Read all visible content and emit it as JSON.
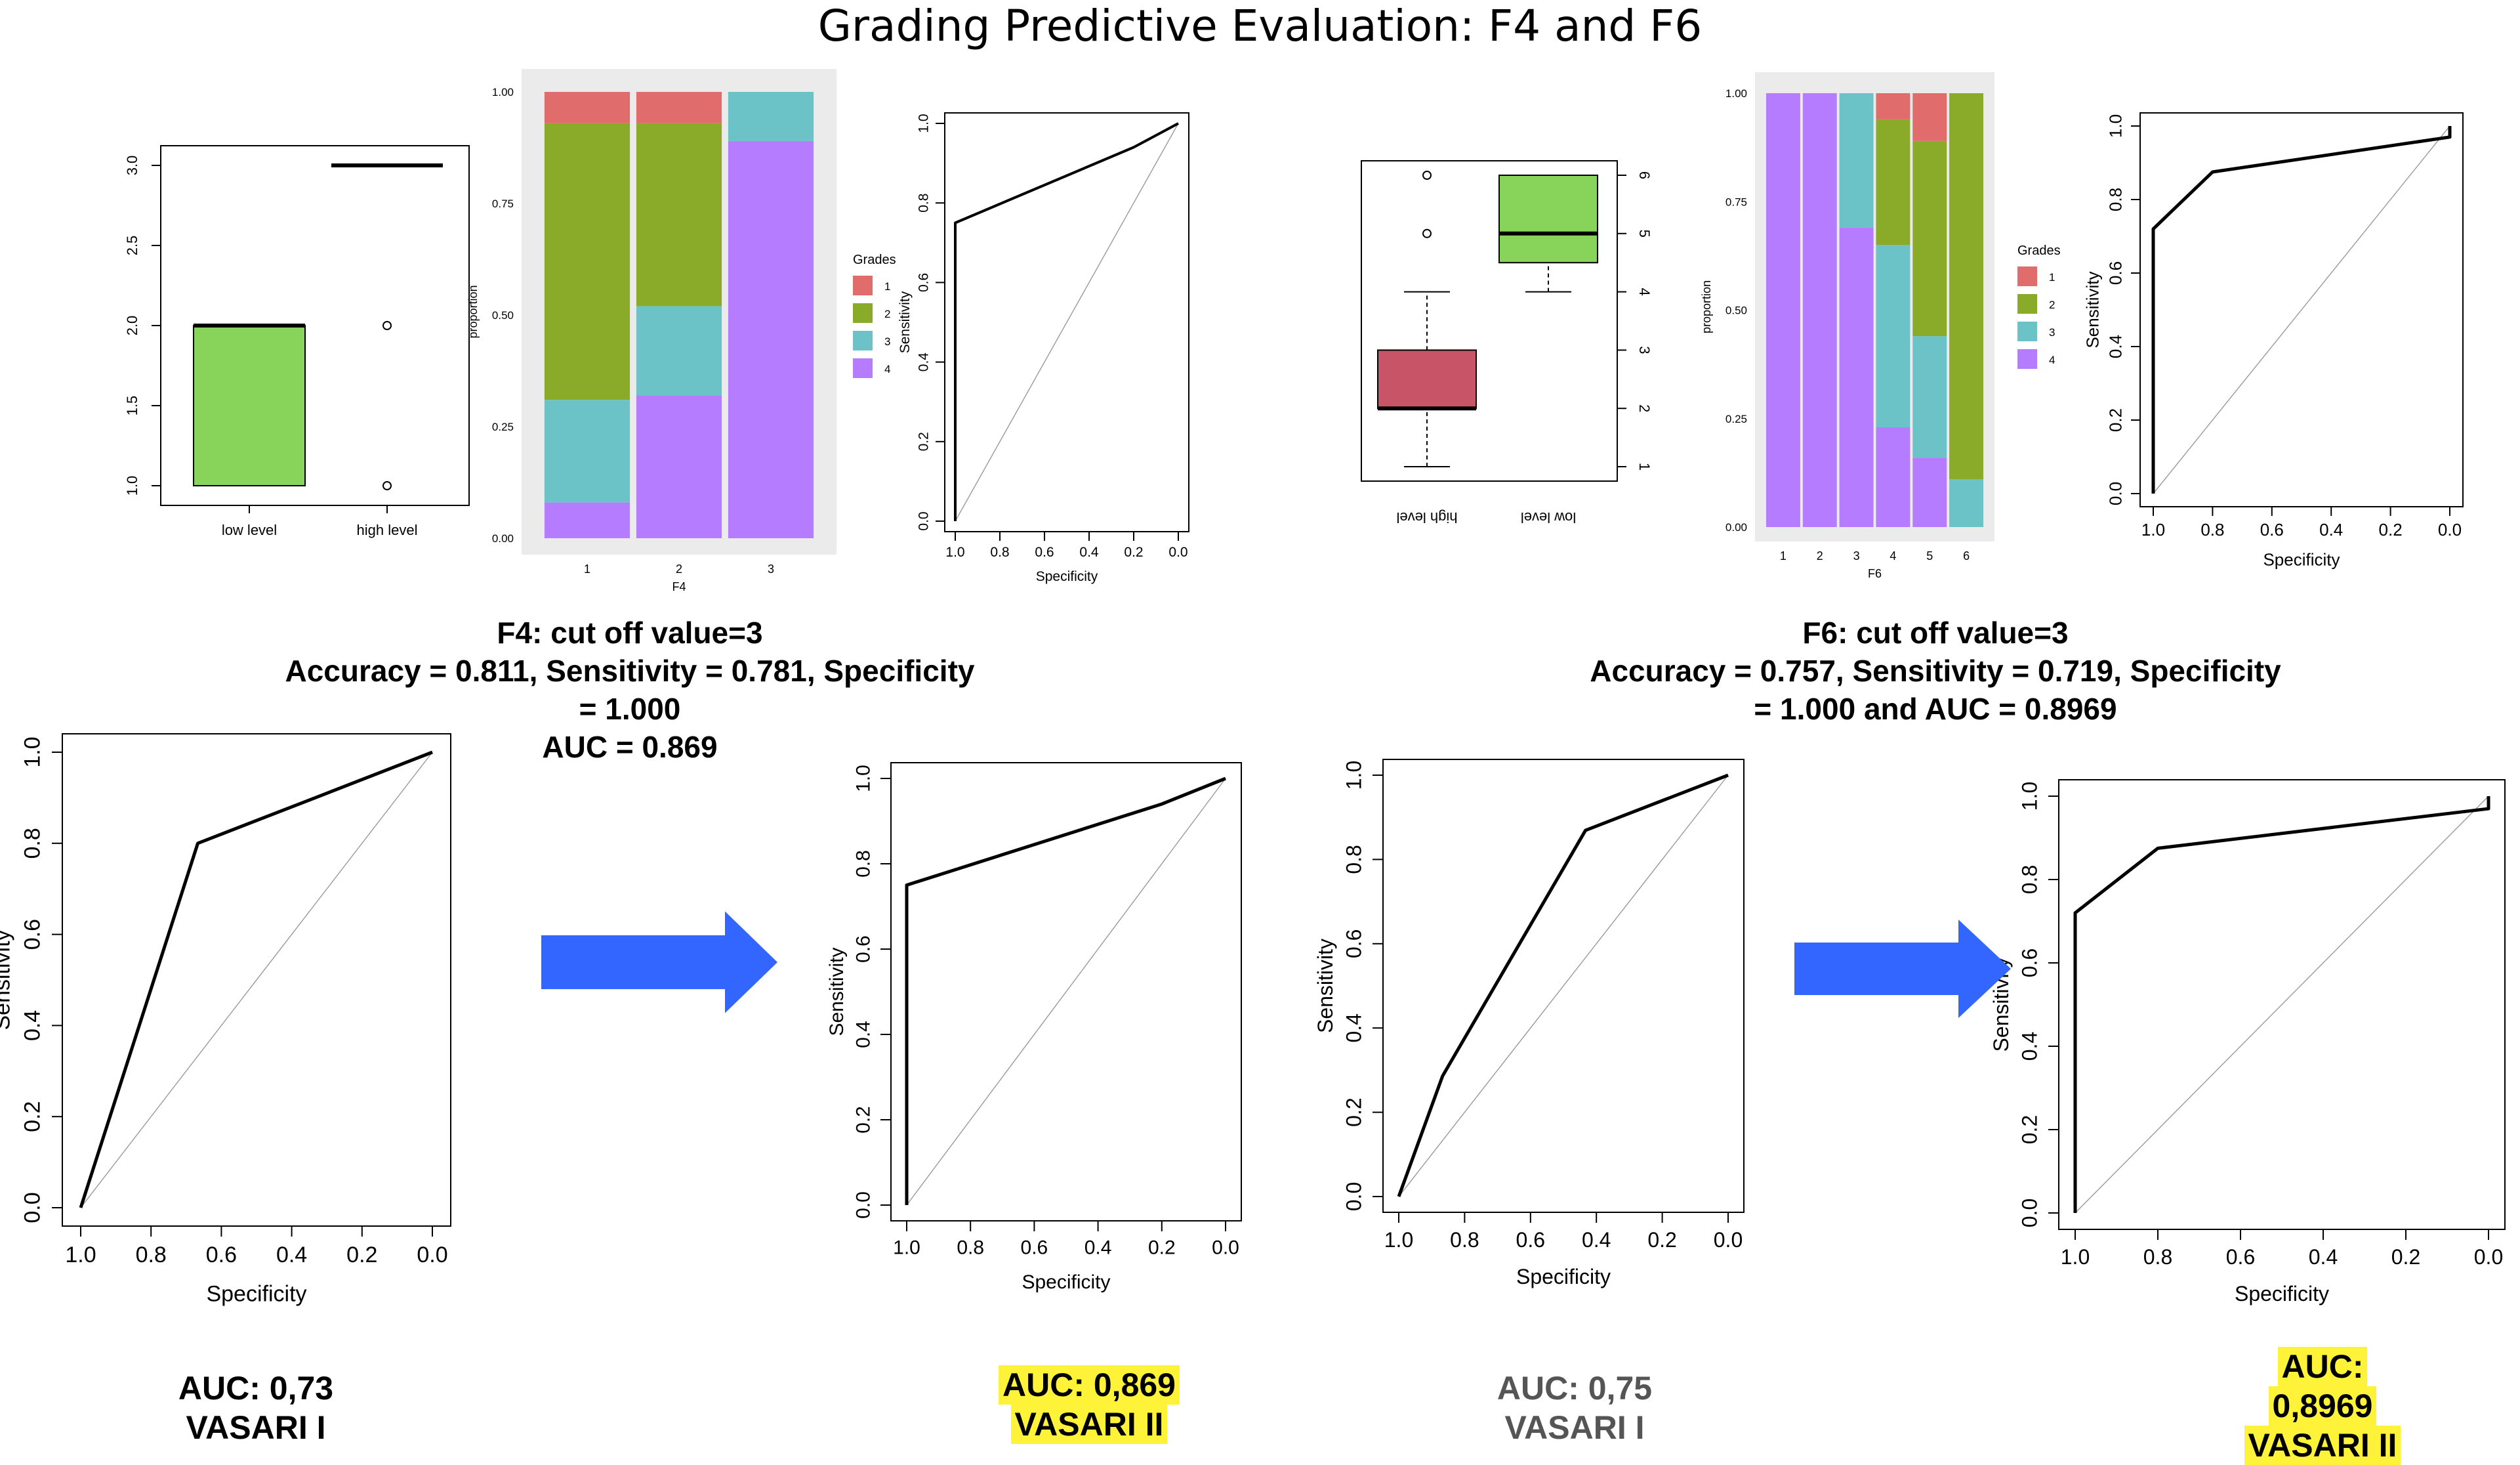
{
  "title": "Grading Predictive Evaluation: F4 and F6",
  "colors": {
    "grade1": "#e06c6c",
    "grade2": "#8aab2a",
    "grade3": "#6cc3c7",
    "grade4": "#b57cff",
    "box_green": "#88d35a",
    "box_red": "#c85468",
    "arrow": "#3366ff",
    "highlight": "#fff33a",
    "panel_bg": "#ebebeb"
  },
  "f4": {
    "stat_title": "F4: cut off value=3",
    "stat_line2": "Accuracy = 0.811, Sensitivity = 0.781, Specificity",
    "stat_line3": "= 1.000",
    "stat_line4": "AUC = 0.869",
    "auc_left_1": "AUC: 0,73",
    "auc_left_2": "VASARI I",
    "auc_right_1": "AUC: 0,869",
    "auc_right_2": "VASARI II"
  },
  "f6": {
    "stat_title": "F6: cut off value=3",
    "stat_line2": "Accuracy = 0.757, Sensitivity = 0.719, Specificity",
    "stat_line3": "= 1.000  and AUC = 0.8969",
    "auc_left_1": "AUC: 0,75",
    "auc_left_2": "VASARI I",
    "auc_right_1": "AUC:",
    "auc_right_2": "0,8969",
    "auc_right_3": "VASARI II"
  },
  "chart_data": [
    {
      "id": "f4_box",
      "type": "box",
      "categories": [
        "low level",
        "high level"
      ],
      "ylim": [
        1.0,
        3.0
      ],
      "yticks": [
        "1.0",
        "1.5",
        "2.0",
        "2.5",
        "3.0"
      ],
      "boxes": [
        {
          "category": "low level",
          "q1": 1.0,
          "median": 2.0,
          "q3": 2.0,
          "whisker_low": 1.0,
          "whisker_high": 2.0,
          "outliers": [],
          "color": "#88d35a"
        },
        {
          "category": "high level",
          "q1": 3.0,
          "median": 3.0,
          "q3": 3.0,
          "whisker_low": 3.0,
          "whisker_high": 3.0,
          "outliers": [
            1.0,
            2.0
          ],
          "color": "#ffffff"
        }
      ]
    },
    {
      "id": "f4_stack",
      "type": "bar",
      "stacked": true,
      "xlabel": "F4",
      "ylabel": "proportion",
      "categories": [
        "1",
        "2",
        "3"
      ],
      "yticks": [
        "0.00",
        "0.25",
        "0.50",
        "0.75",
        "1.00"
      ],
      "legend_title": "Grades",
      "series": [
        {
          "name": "4",
          "values": [
            0.08,
            0.32,
            0.89
          ]
        },
        {
          "name": "3",
          "values": [
            0.23,
            0.2,
            0.11
          ]
        },
        {
          "name": "2",
          "values": [
            0.62,
            0.41,
            0.0
          ]
        },
        {
          "name": "1",
          "values": [
            0.07,
            0.07,
            0.0
          ]
        }
      ]
    },
    {
      "id": "f4_roc_small",
      "type": "line",
      "xlabel": "Specificity",
      "ylabel": "Sensitivity",
      "xlim": [
        1.0,
        0.0
      ],
      "ylim": [
        0.0,
        1.0
      ],
      "xticks": [
        "1.0",
        "0.8",
        "0.6",
        "0.4",
        "0.2",
        "0.0"
      ],
      "yticks": [
        "0.0",
        "0.2",
        "0.4",
        "0.6",
        "0.8",
        "1.0"
      ],
      "series": [
        {
          "name": "ROC",
          "x": [
            1.0,
            1.0,
            0.2,
            0.0
          ],
          "y": [
            0.0,
            0.75,
            0.94,
            1.0
          ]
        }
      ]
    },
    {
      "id": "f6_box",
      "type": "box",
      "categories": [
        "high level",
        "low level"
      ],
      "ylim": [
        1,
        6
      ],
      "yticks": [
        "1",
        "2",
        "3",
        "4",
        "5",
        "6"
      ],
      "flipped": true,
      "boxes": [
        {
          "category": "high level",
          "q1": 2.0,
          "median": 2.0,
          "q3": 3.0,
          "whisker_low": 1.0,
          "whisker_high": 4.0,
          "outliers": [
            5.0,
            6.0
          ],
          "color": "#c85468"
        },
        {
          "category": "low level",
          "q1": 4.5,
          "median": 5.0,
          "q3": 6.0,
          "whisker_low": 4.0,
          "whisker_high": 6.0,
          "outliers": [],
          "color": "#88d35a"
        }
      ]
    },
    {
      "id": "f6_stack",
      "type": "bar",
      "stacked": true,
      "xlabel": "F6",
      "ylabel": "proportion",
      "categories": [
        "1",
        "2",
        "3",
        "4",
        "5",
        "6"
      ],
      "yticks": [
        "0.00",
        "0.25",
        "0.50",
        "0.75",
        "1.00"
      ],
      "legend_title": "Grades",
      "series": [
        {
          "name": "4",
          "values": [
            1.0,
            1.0,
            0.69,
            0.23,
            0.16,
            0.0
          ]
        },
        {
          "name": "3",
          "values": [
            0.0,
            0.0,
            0.31,
            0.42,
            0.28,
            0.11
          ]
        },
        {
          "name": "2",
          "values": [
            0.0,
            0.0,
            0.0,
            0.29,
            0.45,
            0.89
          ]
        },
        {
          "name": "1",
          "values": [
            0.0,
            0.0,
            0.0,
            0.06,
            0.11,
            0.0
          ]
        }
      ]
    },
    {
      "id": "f6_roc_small",
      "type": "line",
      "xlabel": "Specificity",
      "ylabel": "Sensitivity",
      "xlim": [
        1.0,
        0.0
      ],
      "ylim": [
        0.0,
        1.0
      ],
      "xticks": [
        "1.0",
        "0.8",
        "0.6",
        "0.4",
        "0.2",
        "0.0"
      ],
      "yticks": [
        "0.0",
        "0.2",
        "0.4",
        "0.6",
        "0.8",
        "1.0"
      ],
      "series": [
        {
          "name": "ROC",
          "x": [
            1.0,
            1.0,
            0.8,
            0.0,
            0.0
          ],
          "y": [
            0.0,
            0.72,
            0.875,
            0.97,
            1.0
          ]
        }
      ]
    },
    {
      "id": "f4_roc_v1",
      "type": "line",
      "xlabel": "Specificity",
      "ylabel": "Sensitivity",
      "xlim": [
        1.0,
        0.0
      ],
      "ylim": [
        0.0,
        1.0
      ],
      "xticks": [
        "1.0",
        "0.8",
        "0.6",
        "0.4",
        "0.2",
        "0.0"
      ],
      "yticks": [
        "0.0",
        "0.2",
        "0.4",
        "0.6",
        "0.8",
        "1.0"
      ],
      "series": [
        {
          "name": "ROC",
          "x": [
            1.0,
            0.667,
            0.333,
            0.0
          ],
          "y": [
            0.0,
            0.8,
            0.9,
            1.0
          ]
        }
      ]
    },
    {
      "id": "f4_roc_v2",
      "type": "line",
      "xlabel": "Specificity",
      "ylabel": "Sensitivity",
      "xlim": [
        1.0,
        0.0
      ],
      "ylim": [
        0.0,
        1.0
      ],
      "xticks": [
        "1.0",
        "0.8",
        "0.6",
        "0.4",
        "0.2",
        "0.0"
      ],
      "yticks": [
        "0.0",
        "0.2",
        "0.4",
        "0.6",
        "0.8",
        "1.0"
      ],
      "series": [
        {
          "name": "ROC",
          "x": [
            1.0,
            1.0,
            0.2,
            0.0
          ],
          "y": [
            0.0,
            0.75,
            0.94,
            1.0
          ]
        }
      ]
    },
    {
      "id": "f6_roc_v1",
      "type": "line",
      "xlabel": "Specificity",
      "ylabel": "Sensitivity",
      "xlim": [
        1.0,
        0.0
      ],
      "ylim": [
        0.0,
        1.0
      ],
      "xticks": [
        "1.0",
        "0.8",
        "0.6",
        "0.4",
        "0.2",
        "0.0"
      ],
      "yticks": [
        "0.0",
        "0.2",
        "0.4",
        "0.6",
        "0.8",
        "1.0"
      ],
      "series": [
        {
          "name": "ROC",
          "x": [
            1.0,
            0.867,
            0.433,
            0.0
          ],
          "y": [
            0.0,
            0.286,
            0.869,
            1.0
          ]
        }
      ]
    },
    {
      "id": "f6_roc_v2",
      "type": "line",
      "xlabel": "Specificity",
      "ylabel": "Sensitivity",
      "xlim": [
        1.0,
        0.0
      ],
      "ylim": [
        0.0,
        1.0
      ],
      "xticks": [
        "1.0",
        "0.8",
        "0.6",
        "0.4",
        "0.2",
        "0.0"
      ],
      "yticks": [
        "0.0",
        "0.2",
        "0.4",
        "0.6",
        "0.8",
        "1.0"
      ],
      "series": [
        {
          "name": "ROC",
          "x": [
            1.0,
            1.0,
            0.8,
            0.0,
            0.0
          ],
          "y": [
            0.0,
            0.72,
            0.875,
            0.97,
            1.0
          ]
        }
      ]
    }
  ]
}
